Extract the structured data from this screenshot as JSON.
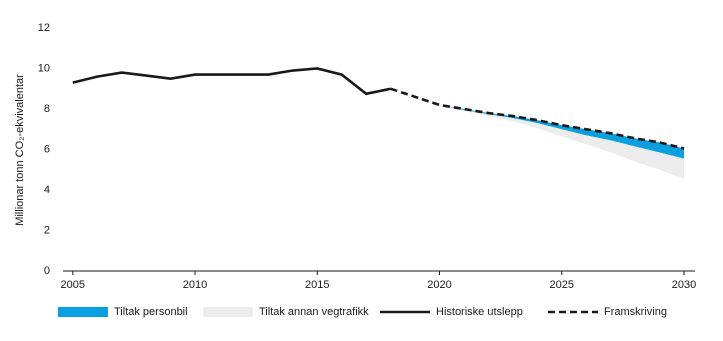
{
  "chart_data": {
    "type": "line",
    "y_label": "Millionar tonn CO₂-ekvivalentar",
    "x": [
      2005,
      2006,
      2007,
      2008,
      2009,
      2010,
      2011,
      2012,
      2013,
      2014,
      2015,
      2016,
      2017,
      2018,
      2019,
      2020,
      2021,
      2022,
      2023,
      2024,
      2025,
      2026,
      2027,
      2028,
      2029,
      2030
    ],
    "xlim": [
      2004.6,
      2030.45
    ],
    "xticks": [
      2005,
      2010,
      2015,
      2020,
      2025,
      2030
    ],
    "ylim": [
      0,
      12
    ],
    "yticks": [
      0,
      2,
      4,
      6,
      8,
      10,
      12
    ],
    "series": [
      {
        "name": "Tiltak personbil",
        "style": "area",
        "color": "#0aa0e0",
        "values": [
          null,
          null,
          null,
          null,
          null,
          null,
          null,
          null,
          null,
          null,
          null,
          null,
          null,
          9.0,
          8.6,
          8.2,
          7.95,
          7.75,
          7.55,
          7.3,
          7.0,
          6.7,
          6.45,
          6.15,
          5.85,
          5.55
        ]
      },
      {
        "name": "Tiltak annan vegtrafikk",
        "style": "area",
        "color": "#ececec",
        "values": [
          null,
          null,
          null,
          null,
          null,
          null,
          null,
          null,
          null,
          null,
          null,
          null,
          null,
          9.0,
          8.58,
          8.15,
          7.9,
          7.65,
          7.4,
          7.05,
          6.65,
          6.25,
          5.85,
          5.4,
          5.0,
          4.55
        ]
      },
      {
        "name": "Historiske utslepp",
        "style": "line",
        "color": "#1a1a1a",
        "values": [
          9.3,
          9.6,
          9.8,
          9.65,
          9.5,
          9.7,
          9.7,
          9.7,
          9.7,
          9.9,
          10.0,
          9.7,
          8.75,
          9.0,
          null,
          null,
          null,
          null,
          null,
          null,
          null,
          null,
          null,
          null,
          null,
          null
        ]
      },
      {
        "name": "Framskriving",
        "style": "dashed",
        "color": "#1a1a1a",
        "values": [
          null,
          null,
          null,
          null,
          null,
          null,
          null,
          null,
          null,
          null,
          null,
          null,
          null,
          9.0,
          8.6,
          8.2,
          8.0,
          7.8,
          7.65,
          7.45,
          7.2,
          7.0,
          6.8,
          6.55,
          6.35,
          6.05
        ]
      }
    ]
  }
}
